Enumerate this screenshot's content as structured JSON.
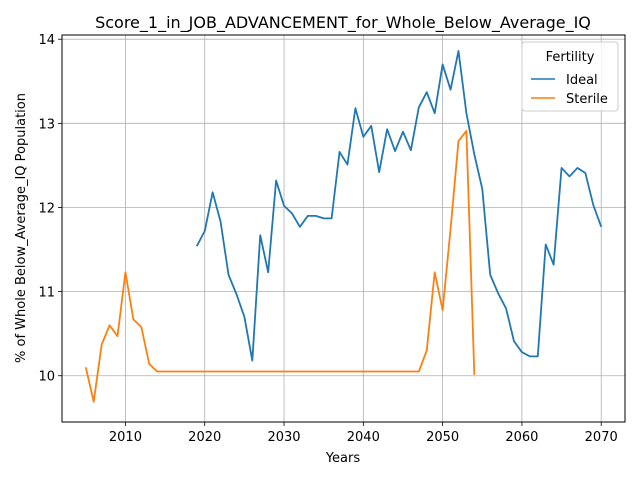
{
  "chart_data": {
    "type": "line",
    "title": "Score_1_in_JOB_ADVANCEMENT_for_Whole_Below_Average_IQ",
    "xlabel": "Years",
    "ylabel": "% of Whole Below_Average_IQ Population",
    "xlim": [
      2002,
      2073
    ],
    "ylim": [
      9.45,
      14.05
    ],
    "xticks": [
      2010,
      2020,
      2030,
      2040,
      2050,
      2060,
      2070
    ],
    "yticks": [
      10,
      11,
      12,
      13,
      14
    ],
    "grid": true,
    "legend": {
      "title": "Fertility",
      "position": "top-right"
    },
    "series": [
      {
        "name": "Ideal",
        "color": "#1f77b4",
        "x": [
          2019,
          2020,
          2021,
          2022,
          2023,
          2024,
          2025,
          2026,
          2027,
          2028,
          2029,
          2030,
          2031,
          2032,
          2033,
          2034,
          2035,
          2036,
          2037,
          2038,
          2039,
          2040,
          2041,
          2042,
          2043,
          2044,
          2045,
          2046,
          2047,
          2048,
          2049,
          2050,
          2051,
          2052,
          2053,
          2054,
          2055,
          2056,
          2057,
          2058,
          2059,
          2060,
          2061,
          2062,
          2063,
          2064,
          2065,
          2066,
          2067,
          2068,
          2069,
          2070
        ],
        "values": [
          11.54,
          11.72,
          12.18,
          11.83,
          11.2,
          10.97,
          10.7,
          10.18,
          11.67,
          11.23,
          12.32,
          12.02,
          11.93,
          11.77,
          11.9,
          11.9,
          11.87,
          11.87,
          12.66,
          12.51,
          13.18,
          12.84,
          12.97,
          12.42,
          12.93,
          12.67,
          12.9,
          12.68,
          13.19,
          13.37,
          13.12,
          13.7,
          13.4,
          13.86,
          13.12,
          12.63,
          12.22,
          11.2,
          10.98,
          10.8,
          10.41,
          10.28,
          10.23,
          10.23,
          11.56,
          11.32,
          12.47,
          12.37,
          12.47,
          12.41,
          12.03,
          11.77
        ]
      },
      {
        "name": "Sterile",
        "color": "#ff7f0e",
        "x": [
          2005,
          2006,
          2007,
          2008,
          2009,
          2010,
          2011,
          2012,
          2013,
          2014,
          2015,
          2016,
          2017,
          2018,
          2019,
          2020,
          2021,
          2022,
          2023,
          2024,
          2025,
          2026,
          2027,
          2028,
          2029,
          2030,
          2031,
          2032,
          2033,
          2034,
          2035,
          2036,
          2037,
          2038,
          2039,
          2040,
          2041,
          2042,
          2043,
          2044,
          2045,
          2046,
          2047,
          2048,
          2049,
          2050,
          2051,
          2052,
          2053,
          2054
        ],
        "values": [
          10.1,
          9.69,
          10.37,
          10.6,
          10.47,
          11.23,
          10.67,
          10.58,
          10.14,
          10.05,
          10.05,
          10.05,
          10.05,
          10.05,
          10.05,
          10.05,
          10.05,
          10.05,
          10.05,
          10.05,
          10.05,
          10.05,
          10.05,
          10.05,
          10.05,
          10.05,
          10.05,
          10.05,
          10.05,
          10.05,
          10.05,
          10.05,
          10.05,
          10.05,
          10.05,
          10.05,
          10.05,
          10.05,
          10.05,
          10.05,
          10.05,
          10.05,
          10.05,
          10.3,
          11.23,
          10.78,
          11.74,
          12.79,
          12.91,
          10.01
        ]
      }
    ]
  }
}
